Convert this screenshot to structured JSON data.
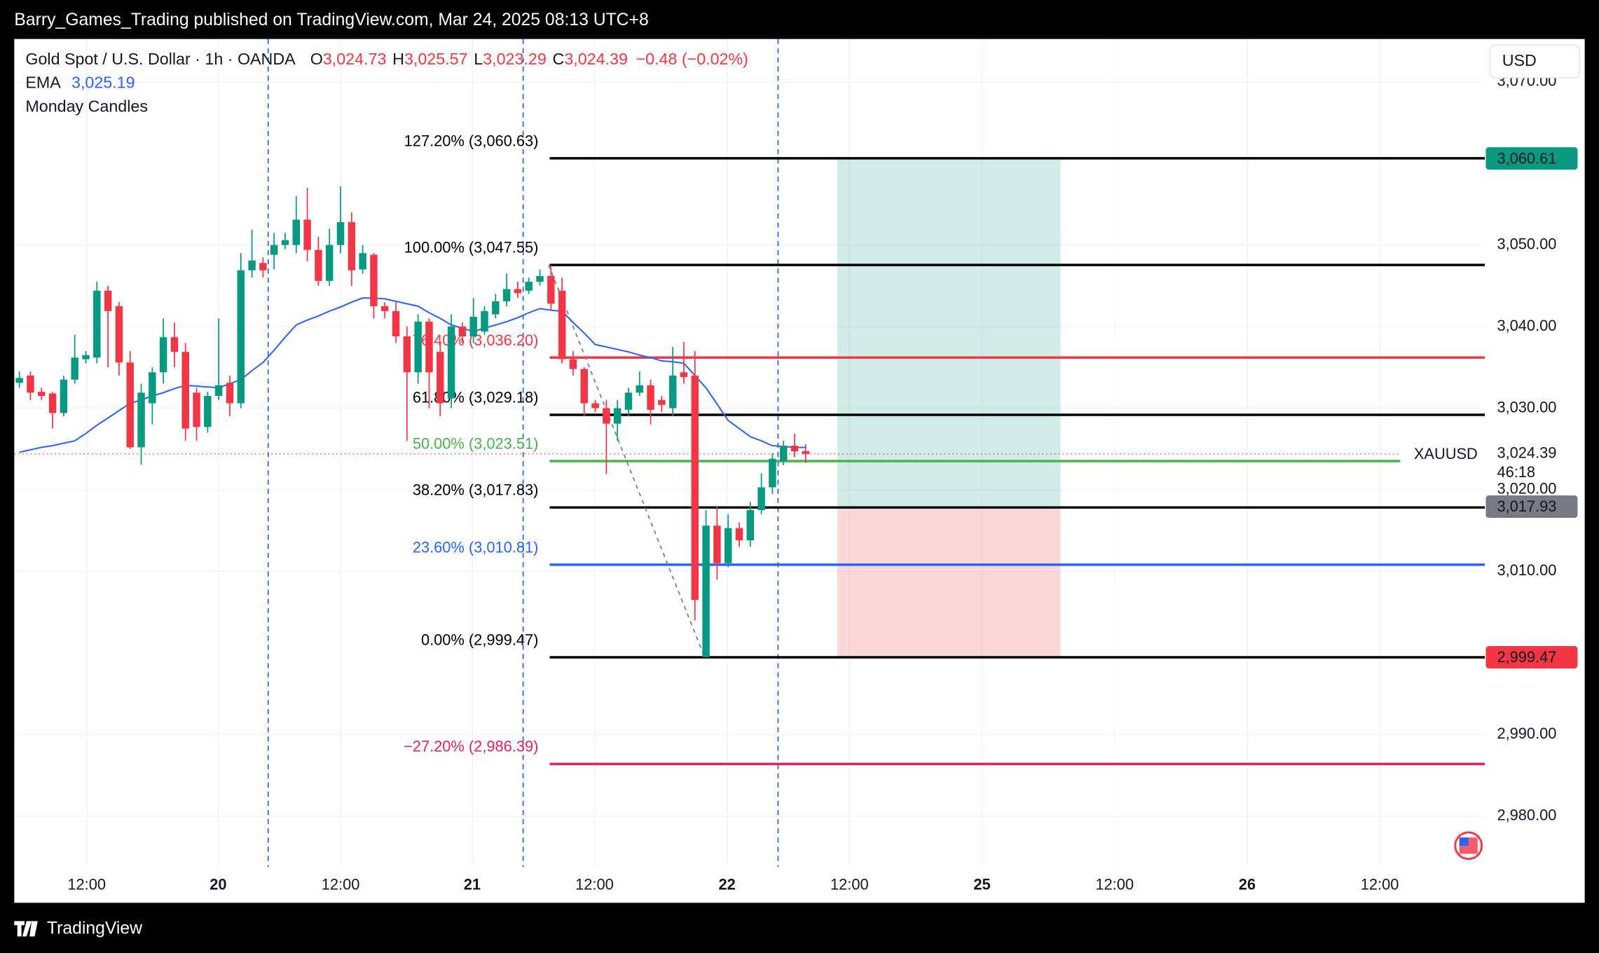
{
  "header": {
    "published": "Barry_Games_Trading published on TradingView.com, Mar 24, 2025 08:13 UTC+8",
    "brand": "TradingView"
  },
  "legend": {
    "symbol": "Gold Spot / U.S. Dollar · 1h · OANDA",
    "ohlc": [
      {
        "key": "O",
        "value": "3,024.73"
      },
      {
        "key": "H",
        "value": "3,025.57"
      },
      {
        "key": "L",
        "value": "3,023.29"
      },
      {
        "key": "C",
        "value": "3,024.39"
      }
    ],
    "change": "−0.48 (−0.02%)",
    "ema_name": "EMA",
    "ema_value": "3,025.19",
    "indicator": "Monday Candles"
  },
  "currency": "USD",
  "chart_data": {
    "type": "candlestick",
    "up_color": "#089981",
    "down_color": "#f23645",
    "ema_color": "#2962ff",
    "ylim": [
      2969.375,
      3075.25
    ],
    "yticks": [
      {
        "value": 3070,
        "label": "3,070.00"
      },
      {
        "value": 3050,
        "label": "3,050.00"
      },
      {
        "value": 3040,
        "label": "3,040.00"
      },
      {
        "value": 3030,
        "label": "3,030.00"
      },
      {
        "value": 3020,
        "label": "3,020.00"
      },
      {
        "value": 3010,
        "label": "3,010.00"
      },
      {
        "value": 2990,
        "label": "2,990.00"
      },
      {
        "value": 2980,
        "label": "2,980.00"
      }
    ],
    "xtick_labels": [
      "12:00",
      "20",
      "12:00",
      "21",
      "12:00",
      "22",
      "12:00",
      "25",
      "12:00",
      "26",
      "12:00"
    ],
    "grid": true,
    "open": [
      3033.1,
      3034,
      3032,
      3031.8,
      3029.4,
      3033.5,
      3036,
      3036.2,
      3044.4,
      3042.5,
      3035.6,
      3025.2,
      3030.6,
      3034.4,
      3038.7,
      3036.9,
      3031.9,
      3027.7,
      3031.5,
      3033.1,
      3030.6,
      3046.9,
      3047.8,
      3048.8,
      3050,
      3050,
      3053.1,
      3049.4,
      3045.6,
      3050,
      3052.8,
      3047,
      3048.8,
      3042.5,
      3041.9,
      3038.8,
      3034.4,
      3040.6,
      3036.9,
      3031.2,
      3040,
      3038.8,
      3039.4,
      3041.5,
      3043.1,
      3044.6,
      3044.4,
      3045.5,
      3046.2,
      3044.4,
      3036,
      3034.8,
      3030.6,
      3030,
      3028.1,
      3029.8,
      3031.9,
      3032.8,
      3031,
      3030,
      3034.4,
      3034,
      2999.5,
      3015.6,
      3011,
      3015.3,
      3013.8,
      3017.5,
      3020.3,
      3023.5,
      3025.4,
      3024.73
    ],
    "high": [
      3034.5,
      3034.5,
      3032.5,
      3032,
      3034,
      3039,
      3037,
      3045.5,
      3045,
      3043,
      3037,
      3033,
      3035,
      3041,
      3040.5,
      3038,
      3032.5,
      3032,
      3041,
      3034,
      3049,
      3051.9,
      3048.5,
      3051.5,
      3051.5,
      3056,
      3057,
      3051,
      3052,
      3057.2,
      3054,
      3050,
      3049,
      3043,
      3043,
      3040,
      3041.5,
      3041,
      3038,
      3041.5,
      3040.5,
      3043.5,
      3042.5,
      3044,
      3046.5,
      3045.5,
      3046,
      3047,
      3047.5,
      3046,
      3037,
      3035,
      3031,
      3031,
      3031,
      3032.5,
      3034.5,
      3033.5,
      3031.5,
      3037.5,
      3038.1,
      3037,
      3017.5,
      3018,
      3017,
      3016,
      3018.5,
      3022,
      3024.5,
      3026,
      3026.9,
      3025.57
    ],
    "low": [
      3032.5,
      3031,
      3031,
      3027.5,
      3029,
      3033,
      3035.5,
      3035.5,
      3035,
      3034,
      3025,
      3023.1,
      3028,
      3033,
      3035,
      3026,
      3026,
      3027,
      3031,
      3029,
      3030,
      3046,
      3046,
      3047,
      3049.5,
      3049,
      3048,
      3045,
      3045,
      3049,
      3045,
      3046.5,
      3041,
      3041,
      3038,
      3026,
      3033,
      3030,
      3029,
      3030,
      3038,
      3038,
      3039,
      3041,
      3042.5,
      3043.5,
      3044,
      3045,
      3042,
      3035.5,
      3034,
      3029,
      3029.5,
      3021.9,
      3026,
      3029,
      3031.5,
      3028,
      3029.5,
      3029,
      3033,
      3004,
      2999.47,
      3009,
      3010.5,
      3013,
      3013,
      3017,
      3019.5,
      3023,
      3024,
      3023.29
    ],
    "close": [
      3033.7,
      3031.9,
      3031.5,
      3029.4,
      3033.5,
      3036.2,
      3036.5,
      3044.4,
      3041.9,
      3035.6,
      3025.2,
      3031.9,
      3034.4,
      3038.7,
      3036.9,
      3027.5,
      3027.7,
      3031.5,
      3032.8,
      3030.6,
      3046.9,
      3048.1,
      3046.9,
      3050,
      3050.6,
      3053.1,
      3049.4,
      3045.6,
      3050,
      3052.8,
      3046.9,
      3049,
      3042.5,
      3041.9,
      3038.8,
      3034.4,
      3040.6,
      3034.4,
      3030.6,
      3040,
      3038.8,
      3041.2,
      3041.9,
      3043.1,
      3044.6,
      3044.1,
      3045.5,
      3046.2,
      3042.8,
      3036,
      3034.8,
      3030.6,
      3030,
      3028.1,
      3030,
      3031.9,
      3032.8,
      3029.8,
      3030.4,
      3034,
      3033.8,
      3006.5,
      3015.6,
      3011,
      3015.3,
      3013.8,
      3017.5,
      3020.3,
      3023.8,
      3025.4,
      3024.7,
      3024.39
    ],
    "ema": [
      3024.6,
      3024.9,
      3025.2,
      3025.4,
      3025.7,
      3026,
      3026.9,
      3027.9,
      3028.8,
      3029.7,
      3030.6,
      3031,
      3031.5,
      3031.9,
      3032.4,
      3032.8,
      3032.7,
      3032.6,
      3032.5,
      3033,
      3033.5,
      3034.6,
      3035.6,
      3037.1,
      3038.7,
      3040.2,
      3040.8,
      3041.3,
      3041.9,
      3042.4,
      3043,
      3043.5,
      3043.5,
      3043.4,
      3043.1,
      3042.8,
      3042.5,
      3041.7,
      3041,
      3040.2,
      3039.8,
      3039.4,
      3039.8,
      3040.2,
      3040.6,
      3041.1,
      3041.7,
      3042.2,
      3042,
      3041.9,
      3040.5,
      3039.2,
      3037.8,
      3037.5,
      3037.2,
      3036.9,
      3036.5,
      3036.2,
      3035.8,
      3035.7,
      3035.5,
      3034,
      3032.5,
      3030.5,
      3028.5,
      3027.5,
      3026.5,
      3026,
      3025.4,
      3025.3,
      3025.2,
      3025.19
    ],
    "fib_levels": [
      {
        "label": "127.20% (3,060.63)",
        "value": 3060.63,
        "color": "#000000"
      },
      {
        "label": "100.00% (3,047.55)",
        "value": 3047.55,
        "color": "#000000"
      },
      {
        "label": "76.40% (3,036.20)",
        "value": 3036.2,
        "color": "#f23645"
      },
      {
        "label": "61.80% (3,029.18)",
        "value": 3029.18,
        "color": "#000000"
      },
      {
        "label": "50.00% (3,023.51)",
        "value": 3023.51,
        "color": "#4caf50"
      },
      {
        "label": "38.20% (3,017.83)",
        "value": 3017.83,
        "color": "#000000"
      },
      {
        "label": "23.60% (3,010.81)",
        "value": 3010.81,
        "color": "#2962ff"
      },
      {
        "label": "0.00% (2,999.47)",
        "value": 2999.47,
        "color": "#000000"
      },
      {
        "label": "−27.20% (2,986.39)",
        "value": 2986.39,
        "color": "#e91e63"
      }
    ],
    "position": {
      "target": 3060.61,
      "target_label": "3,060.61",
      "entry": 3017.93,
      "entry_label": "3,017.93",
      "stop": 2999.47,
      "stop_label": "2,999.47"
    },
    "last_price": {
      "value": 3024.39,
      "label": "3,024.39",
      "countdown": "46:18",
      "symbol": "XAUUSD"
    }
  }
}
